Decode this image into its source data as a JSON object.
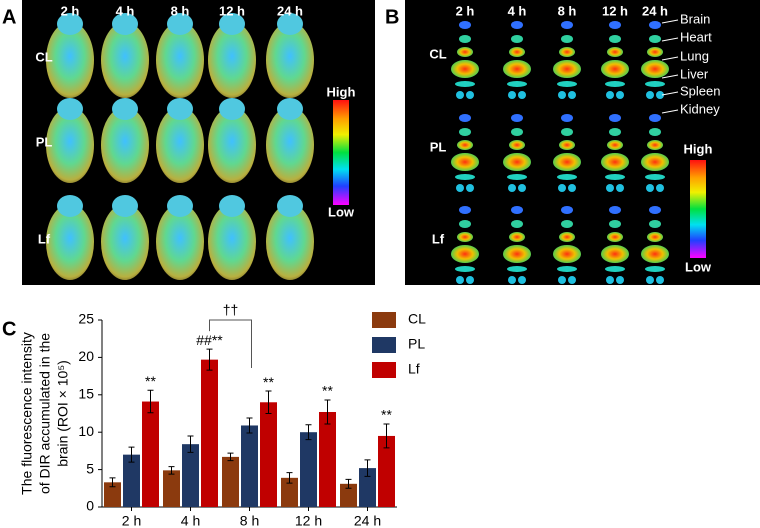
{
  "panel_a": {
    "letter": "A",
    "times": [
      "2 h",
      "4 h",
      "8 h",
      "12 h",
      "24 h"
    ],
    "groups": [
      "CL",
      "PL",
      "Lf"
    ],
    "scale_high": "High",
    "scale_low": "Low"
  },
  "panel_b": {
    "letter": "B",
    "times": [
      "2 h",
      "4 h",
      "8 h",
      "12 h",
      "24 h"
    ],
    "groups": [
      "CL",
      "PL",
      "Lf"
    ],
    "organs": [
      "Brain",
      "Heart",
      "Lung",
      "Liver",
      "Spleen",
      "Kidney"
    ],
    "scale_high": "High",
    "scale_low": "Low"
  },
  "chart_data": {
    "type": "bar",
    "letter": "C",
    "ylabel": [
      "The fluorescence intensity",
      "of DIR accumulated in the",
      "brain (ROI × 10⁵)"
    ],
    "categories": [
      "2 h",
      "4 h",
      "8 h",
      "12 h",
      "24 h"
    ],
    "series": [
      {
        "name": "CL",
        "color": "#8b3a0e",
        "values": [
          3.3,
          4.9,
          6.7,
          3.9,
          3.1
        ],
        "errors": [
          0.6,
          0.5,
          0.5,
          0.7,
          0.6
        ]
      },
      {
        "name": "PL",
        "color": "#1f3864",
        "values": [
          7.0,
          8.4,
          10.9,
          10.0,
          5.2
        ],
        "errors": [
          1.0,
          1.1,
          1.0,
          1.0,
          1.1
        ]
      },
      {
        "name": "Lf",
        "color": "#c00000",
        "values": [
          14.1,
          19.7,
          14.0,
          12.7,
          9.5
        ],
        "errors": [
          1.5,
          1.4,
          1.5,
          1.6,
          1.6
        ],
        "labels": [
          "**",
          "##**",
          "**",
          "**",
          "**"
        ]
      }
    ],
    "bracket_label": "††",
    "ylim": [
      0,
      25
    ],
    "yticks": [
      0,
      5,
      10,
      15,
      20,
      25
    ],
    "legend": "right"
  }
}
